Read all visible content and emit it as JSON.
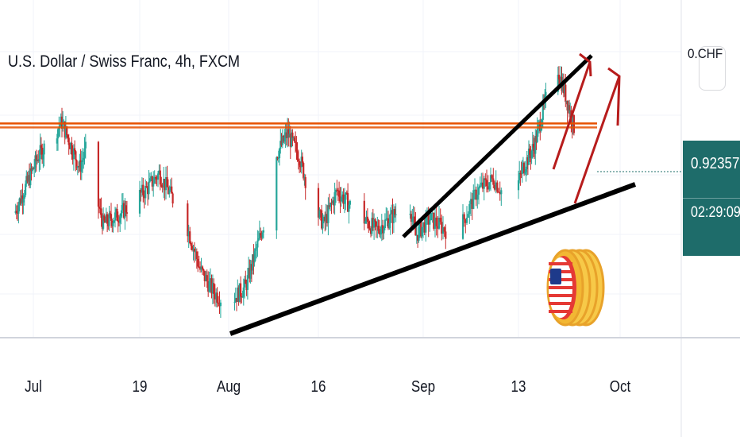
{
  "chart": {
    "title": "U.S. Dollar / Swiss Franc, 4h, FXCM",
    "currency_badge": "0.CHF",
    "last_price": "0.92357",
    "countdown": "02:29:09"
  },
  "colors": {
    "up": "#26a69a",
    "down": "#c62828",
    "resistance": "#e65100",
    "trendline": "#000000",
    "arrow": "#b71c1c",
    "price_label_bg": "#1e6c6a"
  },
  "chart_data": {
    "type": "candlestick",
    "x_ticks": [
      "Jul",
      "19",
      "Aug",
      "16",
      "Sep",
      "13",
      "Oct"
    ],
    "y_range": [
      0.905,
      0.932
    ],
    "resistance_level": 0.9237,
    "current_price": 0.92357,
    "anchors": [
      [
        "Jun 28",
        0.916
      ],
      [
        "Jul 2",
        0.921
      ],
      [
        "Jul 6",
        0.924
      ],
      [
        "Jul 9",
        0.92
      ],
      [
        "Jul 11",
        0.923
      ],
      [
        "Jul 12",
        0.917
      ],
      [
        "Jul 13",
        0.915
      ],
      [
        "Jul 16",
        0.916
      ],
      [
        "Jul 20",
        0.918
      ],
      [
        "Jul 22",
        0.9195
      ],
      [
        "Jul 26",
        0.915
      ],
      [
        "Jul 28",
        0.911
      ],
      [
        "Jul 30",
        0.909
      ],
      [
        "Aug 1",
        0.908
      ],
      [
        "Aug 4",
        0.9095
      ],
      [
        "Aug 7",
        0.915
      ],
      [
        "Aug 9",
        0.921
      ],
      [
        "Aug 11",
        0.923
      ],
      [
        "Aug 13",
        0.921
      ],
      [
        "Aug 15",
        0.917
      ],
      [
        "Aug 17",
        0.915
      ],
      [
        "Aug 19",
        0.918
      ],
      [
        "Aug 22",
        0.916
      ],
      [
        "Aug 25",
        0.9145
      ],
      [
        "Aug 27",
        0.9155
      ],
      [
        "Aug 30",
        0.917
      ],
      [
        "Aug 31",
        0.914
      ],
      [
        "Sep 2",
        0.9155
      ],
      [
        "Sep 4",
        0.9145
      ],
      [
        "Sep 6",
        0.915
      ],
      [
        "Sep 8",
        0.918
      ],
      [
        "Sep 10",
        0.919
      ],
      [
        "Sep 12",
        0.917
      ],
      [
        "Sep 14",
        0.92
      ],
      [
        "Sep 16",
        0.922
      ],
      [
        "Sep 18",
        0.926
      ],
      [
        "Sep 20",
        0.929
      ],
      [
        "Sep 22",
        0.9255
      ],
      [
        "Sep 23",
        0.92357
      ]
    ]
  }
}
